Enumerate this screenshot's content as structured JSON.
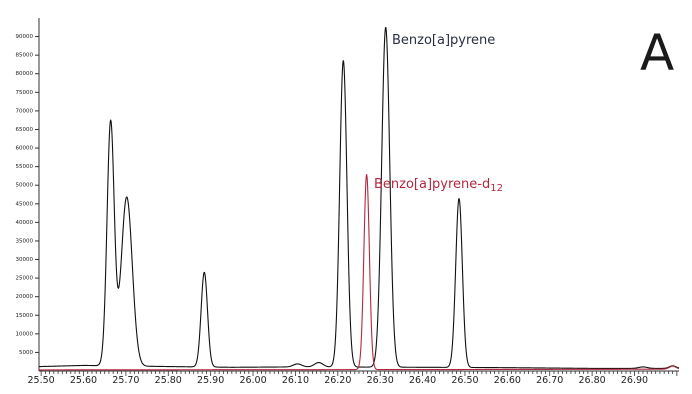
{
  "panel_label": "A",
  "chart_data": {
    "type": "line",
    "title": "",
    "xlabel": "",
    "ylabel": "",
    "xlim": [
      25.495,
      27.005
    ],
    "ylim": [
      0,
      95000
    ],
    "grid": false,
    "x_ticks": [
      "25.50",
      "25.60",
      "25.70",
      "25.80",
      "25.90",
      "26.00",
      "26.10",
      "26.20",
      "26.30",
      "26.40",
      "26.50",
      "26.60",
      "26.70",
      "26.80",
      "26.90"
    ],
    "y_ticks": [
      "5000",
      "10000",
      "15000",
      "20000",
      "25000",
      "30000",
      "35000",
      "40000",
      "45000",
      "50000",
      "55000",
      "60000",
      "65000",
      "70000",
      "75000",
      "80000",
      "85000",
      "90000"
    ],
    "series": [
      {
        "name": "Benzo[a]pyrene",
        "color": "#111111",
        "baseline": [
          [
            25.5,
            1200
          ],
          [
            25.6,
            1500
          ],
          [
            25.8,
            1200
          ],
          [
            25.95,
            1000
          ],
          [
            26.1,
            1100
          ],
          [
            26.4,
            1000
          ],
          [
            26.6,
            900
          ],
          [
            26.8,
            700
          ],
          [
            27.0,
            700
          ]
        ],
        "peaks": [
          {
            "x": 25.664,
            "height": 65500,
            "sigma": 0.0085
          },
          {
            "x": 25.702,
            "height": 45500,
            "sigma": 0.013
          },
          {
            "x": 25.885,
            "height": 25500,
            "sigma": 0.0075
          },
          {
            "x": 26.105,
            "height": 800,
            "sigma": 0.01
          },
          {
            "x": 26.155,
            "height": 1200,
            "sigma": 0.01
          },
          {
            "x": 26.213,
            "height": 82500,
            "sigma": 0.0085
          },
          {
            "x": 26.313,
            "height": 91500,
            "sigma": 0.0095
          },
          {
            "x": 26.486,
            "height": 45500,
            "sigma": 0.0078
          },
          {
            "x": 26.92,
            "height": 400,
            "sigma": 0.01
          },
          {
            "x": 26.99,
            "height": 700,
            "sigma": 0.008
          }
        ]
      },
      {
        "name": "Benzo[a]pyrene-d",
        "name_sub": "12",
        "color": "#b3283e",
        "baseline": [
          [
            25.5,
            300
          ],
          [
            26.0,
            350
          ],
          [
            26.5,
            400
          ],
          [
            26.8,
            450
          ],
          [
            27.0,
            500
          ]
        ],
        "peaks": [
          {
            "x": 26.268,
            "height": 52500,
            "sigma": 0.0065
          },
          {
            "x": 26.99,
            "height": 800,
            "sigma": 0.008
          }
        ]
      }
    ]
  }
}
